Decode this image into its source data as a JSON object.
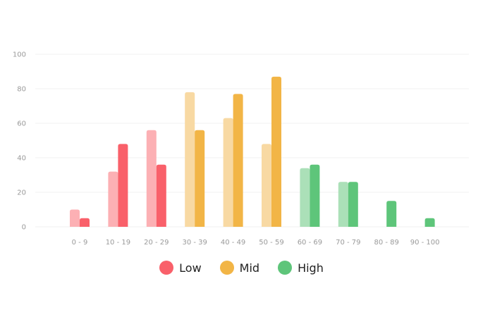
{
  "chart_data": {
    "type": "bar",
    "categories": [
      "0 - 9",
      "10 - 19",
      "20 - 29",
      "30 - 39",
      "40 - 49",
      "50 - 59",
      "60 - 69",
      "70 - 79",
      "80 - 89",
      "90 - 100"
    ],
    "series": [
      {
        "values": [
          10,
          32,
          56,
          78,
          63,
          48,
          34,
          26,
          null,
          null
        ]
      },
      {
        "values": [
          5,
          48,
          36,
          56,
          77,
          87,
          36,
          26,
          15,
          5
        ]
      }
    ],
    "ylim": [
      0,
      100
    ],
    "yticks": [
      "0",
      "20",
      "40",
      "60",
      "80",
      "100"
    ],
    "grid": true,
    "legend_position": "bottom-center"
  },
  "legend": [
    {
      "label": "Low",
      "color": "#f9606a",
      "range": [
        0,
        2
      ]
    },
    {
      "label": "Mid",
      "color": "#f2b546",
      "range": [
        3,
        5
      ]
    },
    {
      "label": "High",
      "color": "#5ec57a",
      "range": [
        6,
        9
      ]
    }
  ],
  "colors": {
    "low_light": "#fcb0b4",
    "low_dark": "#f9606a",
    "mid_light": "#f8d9a3",
    "mid_dark": "#f2b546",
    "high_light": "#abe0b8",
    "high_dark": "#5ec57a",
    "grid": "#f1f1f1",
    "tick": "#9a9a9a"
  }
}
